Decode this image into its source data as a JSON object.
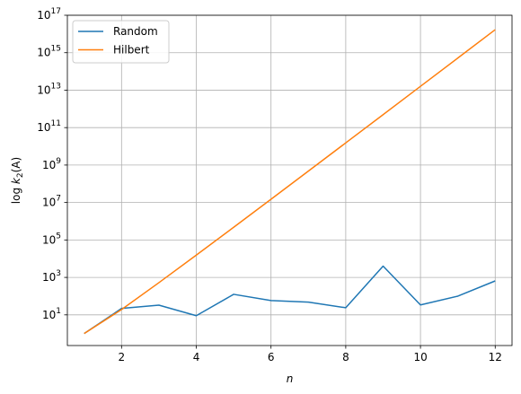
{
  "chart_data": {
    "type": "line",
    "title": "",
    "xlabel": "n",
    "ylabel_prefix": "log ",
    "ylabel_k": "k",
    "ylabel_sub": "2",
    "ylabel_suffix": "(A)",
    "x": [
      1,
      2,
      3,
      4,
      5,
      6,
      7,
      8,
      9,
      10,
      11,
      12
    ],
    "xlim": [
      0.55,
      12.45
    ],
    "ylim": [
      0.23,
      1e+17
    ],
    "yscale": "log",
    "grid": true,
    "legend_position": "upper-left",
    "xticks": [
      2,
      4,
      6,
      8,
      10,
      12
    ],
    "xtick_labels": [
      "2",
      "4",
      "6",
      "8",
      "10",
      "12"
    ],
    "yticks": [
      10.0,
      1000.0,
      100000.0,
      10000000.0,
      1000000000.0,
      100000000000.0,
      10000000000000.0,
      1000000000000000.0,
      1e+17
    ],
    "ytick_labels": [
      {
        "base": "10",
        "exp": "1"
      },
      {
        "base": "10",
        "exp": "3"
      },
      {
        "base": "10",
        "exp": "5"
      },
      {
        "base": "10",
        "exp": "7"
      },
      {
        "base": "10",
        "exp": "9"
      },
      {
        "base": "10",
        "exp": "11"
      },
      {
        "base": "10",
        "exp": "13"
      },
      {
        "base": "10",
        "exp": "15"
      },
      {
        "base": "10",
        "exp": "17"
      }
    ],
    "series": [
      {
        "name": "Random",
        "color": "#1f77b4",
        "values": [
          1,
          22,
          33,
          9,
          125,
          58,
          48,
          24,
          4000,
          34,
          100,
          650
        ]
      },
      {
        "name": "Hilbert",
        "color": "#ff7f0e",
        "values": [
          1,
          19.3,
          524,
          15500,
          476600,
          14950000,
          475000000,
          15300000000,
          493000000000,
          16000000000000,
          520000000000000,
          17000000000000000
        ]
      }
    ]
  }
}
